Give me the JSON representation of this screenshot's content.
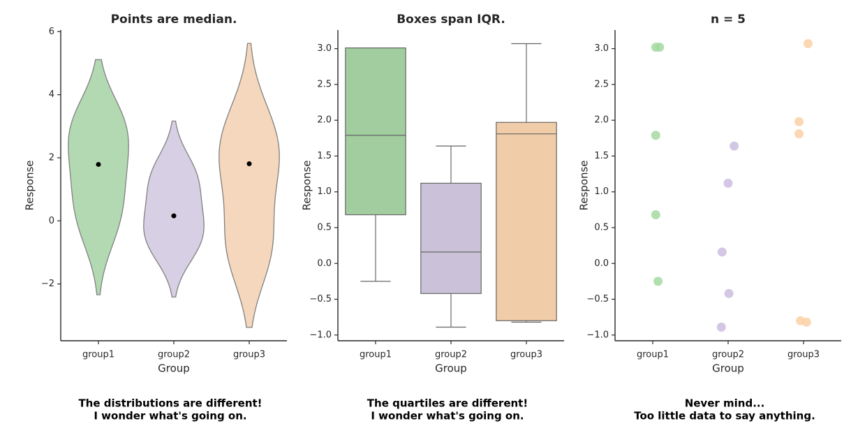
{
  "chart_data": [
    {
      "type": "violin",
      "title": "Points are median.",
      "xlabel": "Group",
      "ylabel": "Response",
      "categories": [
        "group1",
        "group2",
        "group3"
      ],
      "groups": [
        [
          3.02,
          3.02,
          1.79,
          0.68,
          -0.25
        ],
        [
          1.64,
          1.12,
          0.16,
          -0.42,
          -0.89
        ],
        [
          3.07,
          1.98,
          1.81,
          -0.8,
          -0.82
        ]
      ],
      "medians": [
        1.79,
        0.16,
        1.81
      ],
      "colors": [
        "#b3d9b3",
        "#d7cfe3",
        "#f4d7bc"
      ],
      "ylim": [
        -3.8,
        6.05
      ],
      "yticks": [
        {
          "value": -2,
          "label": "−2"
        },
        0,
        2,
        4,
        6
      ],
      "annotation": [
        "The distributions are different!",
        "I wonder what's going on."
      ]
    },
    {
      "type": "box",
      "title": "Boxes span IQR.",
      "xlabel": "Group",
      "ylabel": "Response",
      "categories": [
        "group1",
        "group2",
        "group3"
      ],
      "boxes": [
        {
          "low": -0.25,
          "q1": 0.68,
          "median": 1.79,
          "q3": 3.01,
          "high": 3.01
        },
        {
          "low": -0.89,
          "q1": -0.42,
          "median": 0.16,
          "q3": 1.12,
          "high": 1.64
        },
        {
          "low": -0.82,
          "q1": -0.8,
          "median": 1.81,
          "q3": 1.97,
          "high": 3.07
        }
      ],
      "colors": [
        "#a1cd9f",
        "#cbc2d9",
        "#f0cca8"
      ],
      "ylim": [
        -1.08,
        3.26
      ],
      "yticks": [
        {
          "value": -1,
          "label": "−1.0"
        },
        {
          "value": -0.5,
          "label": "−0.5"
        },
        {
          "value": 0,
          "label": "0.0"
        },
        0.5,
        {
          "value": 1,
          "label": "1.0"
        },
        1.5,
        {
          "value": 2,
          "label": "2.0"
        },
        2.5,
        {
          "value": 3,
          "label": "3.0"
        }
      ],
      "annotation": [
        "The quartiles are different!",
        "I wonder what's going on."
      ]
    },
    {
      "type": "strip",
      "title": "n = 5",
      "xlabel": "Group",
      "ylabel": "Response",
      "categories": [
        "group1",
        "group2",
        "group3"
      ],
      "groups": [
        [
          3.02,
          3.02,
          1.79,
          0.68,
          -0.25
        ],
        [
          1.64,
          1.12,
          0.16,
          -0.42,
          -0.89
        ],
        [
          3.07,
          1.98,
          1.81,
          -0.8,
          -0.82
        ]
      ],
      "colors": [
        "#a3d9a0",
        "#cbbde0",
        "#fcd0a6"
      ],
      "ylim": [
        -1.08,
        3.26
      ],
      "yticks": [
        {
          "value": -1,
          "label": "−1.0"
        },
        {
          "value": -0.5,
          "label": "−0.5"
        },
        {
          "value": 0,
          "label": "0.0"
        },
        0.5,
        {
          "value": 1,
          "label": "1.0"
        },
        1.5,
        {
          "value": 2,
          "label": "2.0"
        },
        2.5,
        {
          "value": 3,
          "label": "3.0"
        }
      ],
      "annotation": [
        "Never mind...",
        "Too little data to say anything."
      ]
    }
  ]
}
